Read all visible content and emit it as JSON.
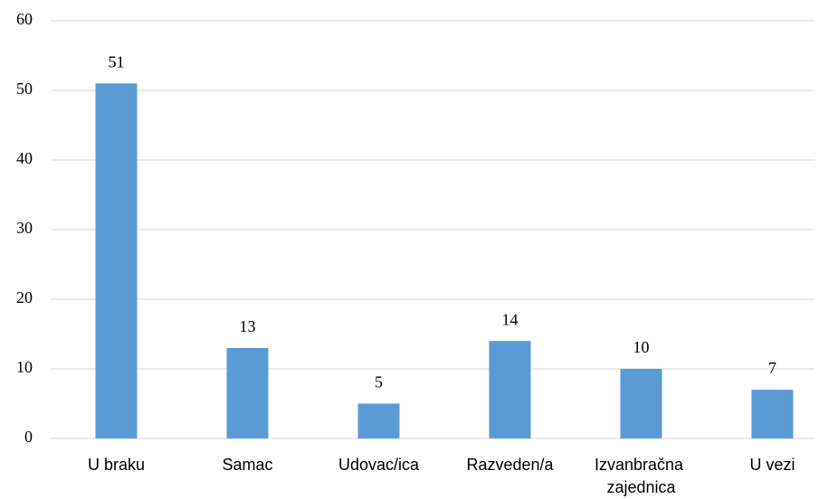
{
  "chart_data": {
    "type": "bar",
    "categories": [
      "U braku",
      "Samac",
      "Udovac/ica",
      "Razveden/a",
      "Izvanbračna zajednica",
      "U vezi"
    ],
    "values": [
      51,
      13,
      5,
      14,
      10,
      7
    ],
    "color": "#5b9bd5",
    "ylim": [
      0,
      60
    ],
    "yticks": [
      0,
      10,
      20,
      30,
      40,
      50,
      60
    ],
    "grid": true
  }
}
